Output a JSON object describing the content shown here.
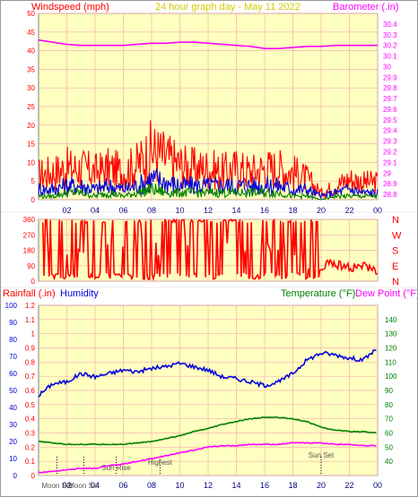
{
  "title": "24 hour graph day - May 11 2022",
  "colors": {
    "plot_bg": "#ffffc0",
    "grid": "#f4b0b0",
    "frame": "#808080",
    "red": "#ff0000",
    "blue": "#0000dd",
    "green": "#008000",
    "magenta": "#ff00ff",
    "darkred": "#cc0000",
    "title": "#d8c800",
    "navy": "#000080"
  },
  "chart_data": [
    {
      "id": "wind_baro",
      "type": "line",
      "title": "24 hour graph day - May 11 2022",
      "ylabel_left": "Windspeed (mph)",
      "ylabel_right": "Barometer (.in)",
      "xlim": [
        0,
        24
      ],
      "ylim_left": [
        0,
        50
      ],
      "ylim_right": [
        28.75,
        30.5
      ],
      "x_ticks": [
        "02",
        "04",
        "06",
        "08",
        "10",
        "12",
        "14",
        "16",
        "18",
        "20",
        "22",
        "00"
      ],
      "y_ticks_left": [
        "0",
        "5",
        "10",
        "15",
        "20",
        "25",
        "30",
        "35",
        "40",
        "45",
        "50"
      ],
      "y_ticks_right": [
        "28.8",
        "28.9",
        "29",
        "29.1",
        "29.2",
        "29.3",
        "29.4",
        "29.5",
        "29.6",
        "29.7",
        "29.8",
        "29.9",
        "30",
        "30.1",
        "30.2",
        "30.3",
        "30.4"
      ],
      "series": [
        {
          "name": "Barometer",
          "axis": "right",
          "color": "#ff00ff",
          "x": [
            0,
            1,
            2,
            3,
            4,
            5,
            6,
            7,
            8,
            9,
            10,
            11,
            12,
            13,
            14,
            15,
            16,
            17,
            18,
            19,
            20,
            21,
            22,
            23,
            24
          ],
          "y": [
            30.25,
            30.23,
            30.21,
            30.2,
            30.2,
            30.2,
            30.2,
            30.21,
            30.22,
            30.22,
            30.23,
            30.23,
            30.22,
            30.21,
            30.2,
            30.19,
            30.17,
            30.17,
            30.18,
            30.19,
            30.19,
            30.2,
            30.2,
            30.2,
            30.2
          ]
        },
        {
          "name": "Gust",
          "axis": "left",
          "color": "#ff0000",
          "x": [
            0,
            1,
            2,
            3,
            4,
            5,
            6,
            7,
            8,
            9,
            10,
            11,
            12,
            13,
            14,
            15,
            16,
            17,
            18,
            19,
            20,
            21,
            22,
            23,
            24
          ],
          "y": [
            7,
            8,
            9,
            9,
            8,
            9,
            8,
            10,
            14,
            12,
            10,
            9,
            9,
            8,
            9,
            8,
            9,
            9,
            8,
            6,
            2,
            4,
            6,
            5,
            5
          ]
        },
        {
          "name": "Average",
          "axis": "left",
          "color": "#0000dd",
          "x": [
            0,
            1,
            2,
            3,
            4,
            5,
            6,
            7,
            8,
            9,
            10,
            11,
            12,
            13,
            14,
            15,
            16,
            17,
            18,
            19,
            20,
            21,
            22,
            23,
            24
          ],
          "y": [
            3,
            3,
            4,
            4,
            3,
            4,
            3,
            4,
            6,
            5,
            4,
            4,
            4,
            4,
            4,
            4,
            4,
            4,
            3,
            3,
            1,
            2,
            3,
            2,
            2
          ]
        },
        {
          "name": "Low",
          "axis": "left",
          "color": "#008000",
          "x": [
            0,
            1,
            2,
            3,
            4,
            5,
            6,
            7,
            8,
            9,
            10,
            11,
            12,
            13,
            14,
            15,
            16,
            17,
            18,
            19,
            20,
            21,
            22,
            23,
            24
          ],
          "y": [
            1,
            1,
            2,
            2,
            1,
            2,
            1,
            2,
            3,
            2,
            2,
            2,
            2,
            2,
            2,
            2,
            2,
            2,
            1,
            1,
            0,
            1,
            1,
            1,
            1
          ]
        }
      ]
    },
    {
      "id": "wind_direction",
      "type": "line",
      "ylabel_right": "N W S E N",
      "xlim": [
        0,
        24
      ],
      "ylim": [
        0,
        360
      ],
      "y_ticks": [
        "0",
        "90",
        "180",
        "270",
        "360"
      ],
      "compass": [
        "N",
        "W",
        "S",
        "E",
        "N"
      ],
      "series": [
        {
          "name": "Direction",
          "color": "#ff0000",
          "x": [
            0,
            2,
            4,
            6,
            8,
            10,
            12,
            14,
            16,
            18,
            19.8,
            20.5,
            21,
            22,
            23,
            24
          ],
          "y": [
            180,
            200,
            190,
            210,
            180,
            200,
            190,
            180,
            200,
            190,
            40,
            110,
            100,
            80,
            90,
            60
          ]
        }
      ]
    },
    {
      "id": "rain_humidity_temp",
      "type": "line",
      "ylabel_left_1": "Rainfall (.in)",
      "ylabel_left_2": "Humidity",
      "ylabel_right_1": "Temperature (°F)",
      "ylabel_right_2": "Dew Point (°F)",
      "xlim": [
        0,
        24
      ],
      "rain_ylim": [
        0,
        1.2
      ],
      "humidity_ylim": [
        0,
        100
      ],
      "temp_ylim": [
        30,
        150
      ],
      "rain_ticks": [
        "0",
        "0.1",
        "0.2",
        "0.3",
        "0.4",
        "0.5",
        "0.6",
        "0.7",
        "0.8",
        "0.9",
        "1",
        "1.1",
        "1.2"
      ],
      "humidity_ticks": [
        "0",
        "10",
        "20",
        "30",
        "40",
        "50",
        "60",
        "70",
        "80",
        "90",
        "100"
      ],
      "temp_ticks": [
        "40",
        "50",
        "60",
        "70",
        "80",
        "90",
        "100",
        "110",
        "120",
        "130",
        "140"
      ],
      "x_ticks": [
        "02",
        "04",
        "06",
        "08",
        "10",
        "12",
        "14",
        "16",
        "18",
        "20",
        "22",
        "00"
      ],
      "annotations": [
        {
          "label": "Moon Set",
          "x": 1.3
        },
        {
          "label": "Moon Set",
          "x": 3.2
        },
        {
          "label": "Sun Rise",
          "x": 5.5
        },
        {
          "label": "Highest",
          "x": 8.6
        },
        {
          "label": "Sun Set",
          "x": 20.0
        }
      ],
      "series": [
        {
          "name": "Humidity",
          "axis": "humidity",
          "color": "#0000dd",
          "x": [
            0,
            1,
            2,
            3,
            4,
            5,
            6,
            7,
            8,
            9,
            10,
            11,
            12,
            13,
            14,
            15,
            16,
            17,
            18,
            19,
            20,
            21,
            22,
            23,
            24
          ],
          "y": [
            47,
            54,
            55,
            60,
            58,
            60,
            62,
            61,
            63,
            64,
            66,
            64,
            62,
            58,
            57,
            55,
            53,
            55,
            60,
            68,
            72,
            71,
            69,
            68,
            75
          ]
        },
        {
          "name": "Temperature",
          "axis": "temp",
          "color": "#008000",
          "x": [
            0,
            1,
            2,
            3,
            4,
            5,
            6,
            7,
            8,
            9,
            10,
            11,
            12,
            13,
            14,
            15,
            16,
            17,
            18,
            19,
            20,
            21,
            22,
            23,
            24
          ],
          "y": [
            54,
            53,
            52,
            52,
            52,
            52,
            52,
            53,
            54,
            56,
            58,
            61,
            63,
            66,
            68,
            70,
            71,
            71,
            70,
            68,
            64,
            62,
            61,
            61,
            60
          ]
        },
        {
          "name": "Dew Point",
          "axis": "temp",
          "color": "#ff00ff",
          "x": [
            0,
            1,
            2,
            3,
            4,
            5,
            6,
            7,
            8,
            9,
            10,
            11,
            12,
            13,
            14,
            15,
            16,
            17,
            18,
            19,
            20,
            21,
            22,
            23,
            24
          ],
          "y": [
            32,
            33,
            34,
            35,
            35,
            37,
            38,
            40,
            42,
            44,
            46,
            48,
            50,
            51,
            51,
            52,
            52,
            52,
            53,
            53,
            53,
            52,
            52,
            51,
            51
          ]
        }
      ]
    }
  ]
}
